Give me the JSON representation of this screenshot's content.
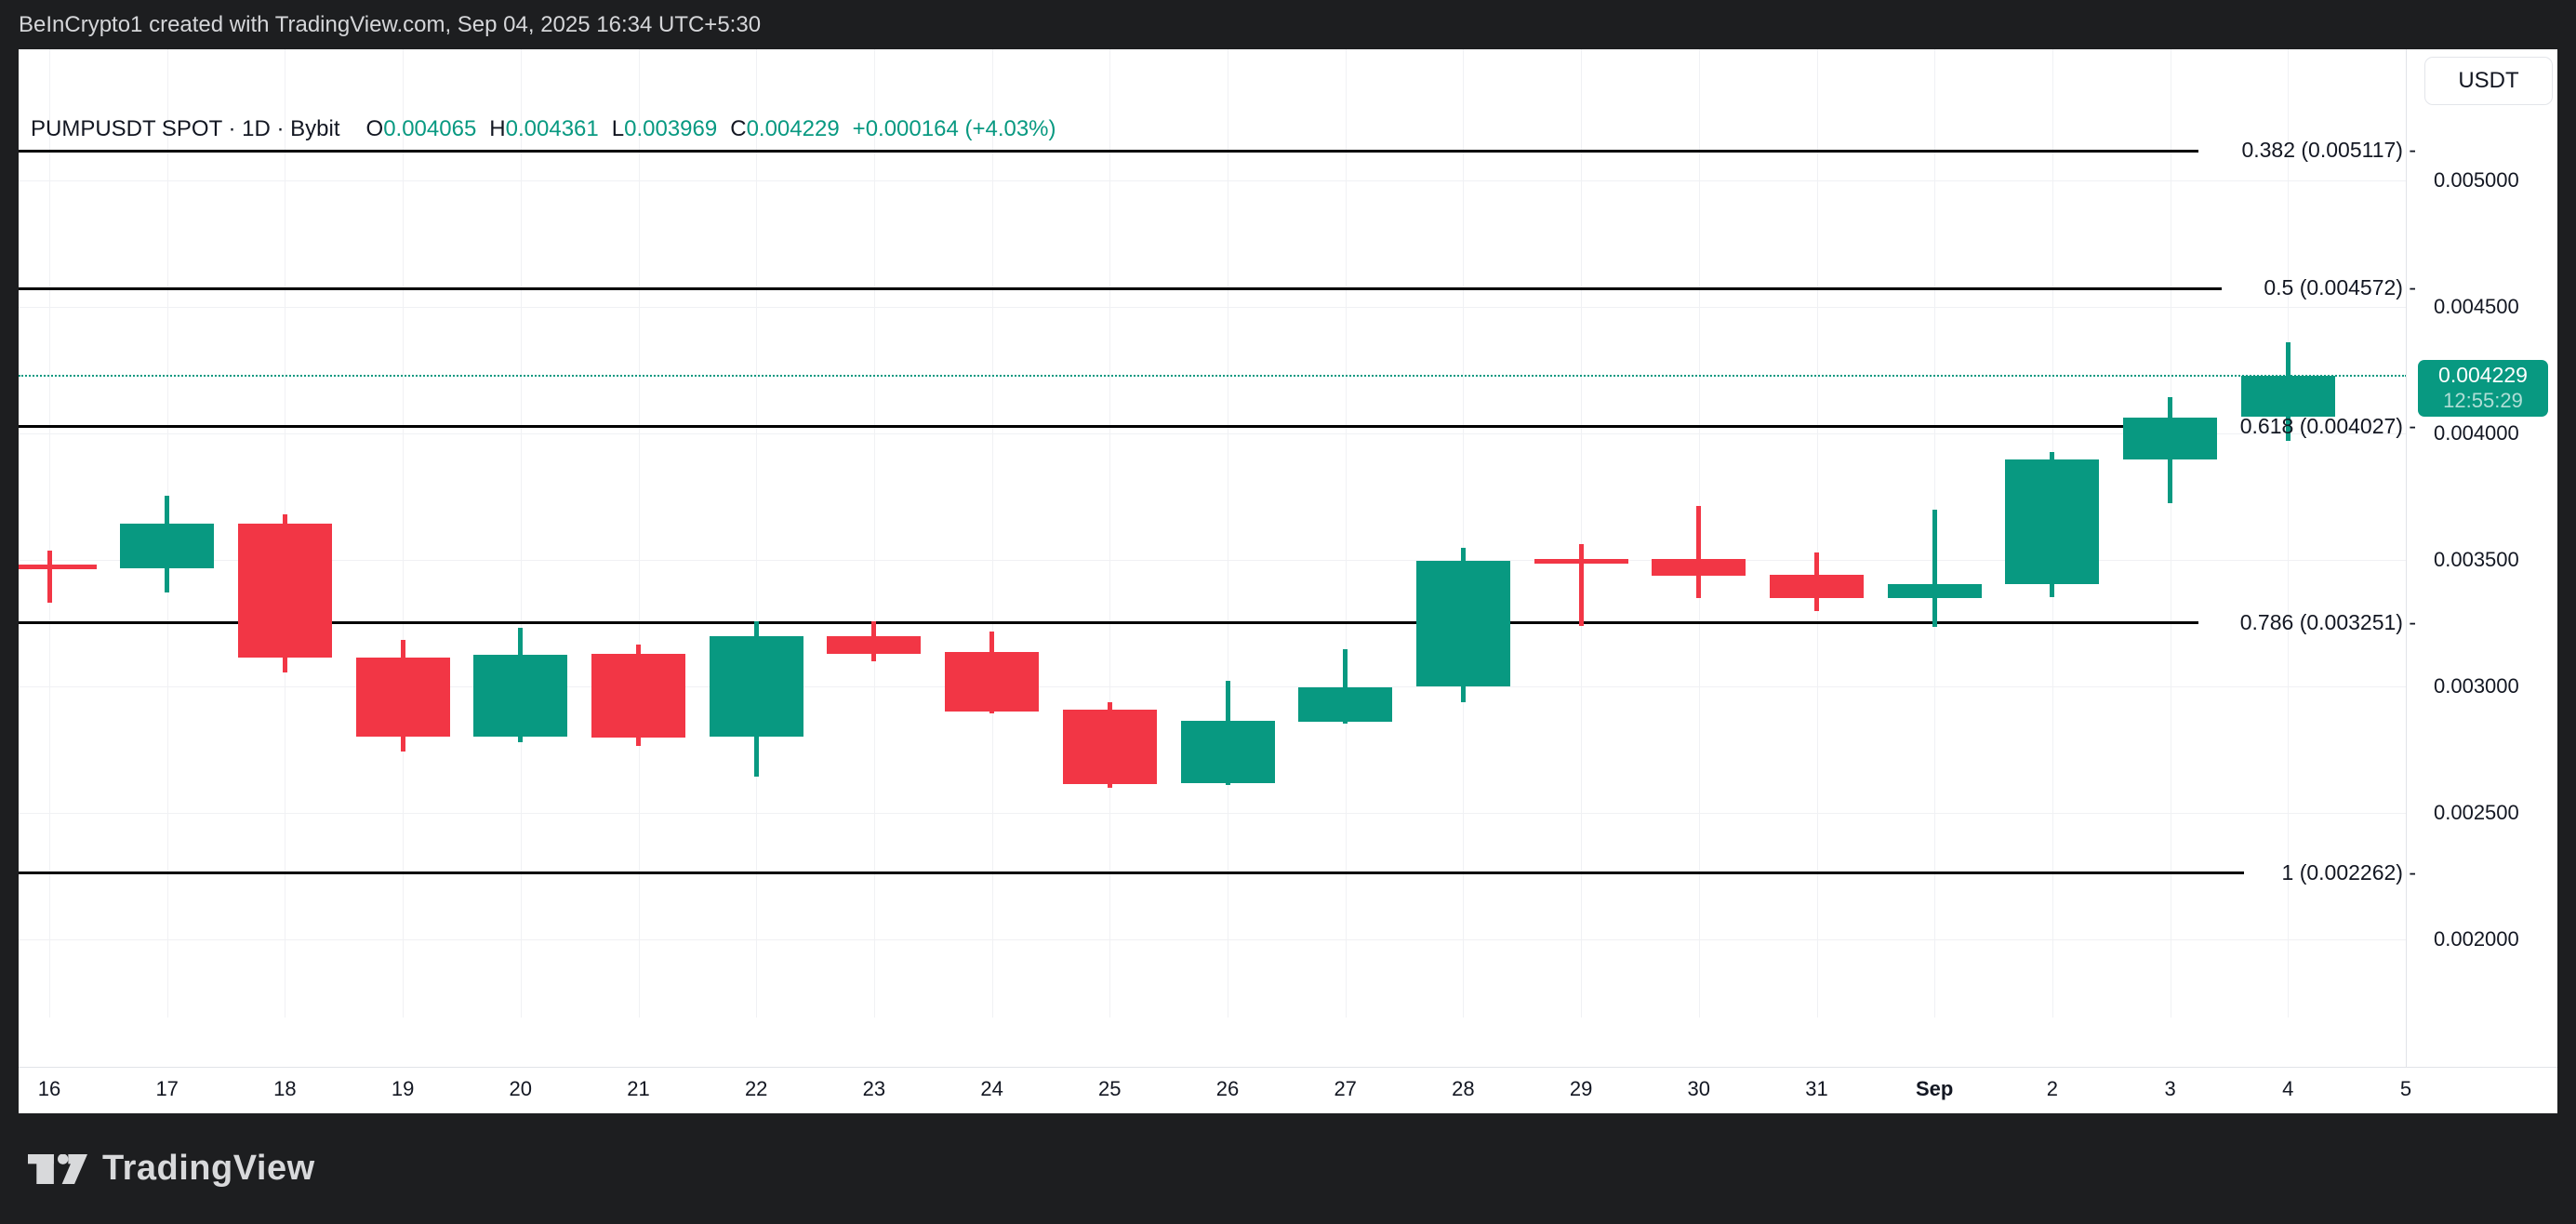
{
  "frame": {
    "header_title": "BeInCrypto1 created with TradingView.com, Sep 04, 2025 16:34 UTC+5:30",
    "footer_brand": "TradingView"
  },
  "toolbar": {
    "currency_label": "USDT"
  },
  "legend": {
    "symbol": "PUMPUSDT SPOT · 1D · Bybit",
    "ohlc": [
      {
        "label": "O",
        "value": "0.004065"
      },
      {
        "label": "H",
        "value": "0.004361"
      },
      {
        "label": "L",
        "value": "0.003969"
      },
      {
        "label": "C",
        "value": "0.004229"
      }
    ],
    "change": "+0.000164 (+4.03%)"
  },
  "colors": {
    "up": "#089981",
    "down": "#f23645",
    "fib_line": "#000000",
    "text": "#131722",
    "grid": "#f0f1f4",
    "frame_bg": "#1d1e20",
    "frame_text": "#d5d6d9",
    "badge_bg": "#089981"
  },
  "chart_data": {
    "type": "candlestick",
    "title": "PUMPUSDT SPOT · 1D · Bybit",
    "interval": "1D",
    "exchange": "Bybit",
    "grid": true,
    "y_axis": {
      "side": "right",
      "tick_labels": [
        "0.005000",
        "0.004500",
        "0.004000",
        "0.003500",
        "0.003000",
        "0.002500",
        "0.002000"
      ],
      "tick_values": [
        0.005,
        0.0045,
        0.004,
        0.0035,
        0.003,
        0.0025,
        0.002
      ],
      "visible_range": [
        0.001496,
        0.005518
      ]
    },
    "x_axis": {
      "labels": [
        "16",
        "17",
        "18",
        "19",
        "20",
        "21",
        "22",
        "23",
        "24",
        "25",
        "26",
        "27",
        "28",
        "29",
        "30",
        "31",
        "Sep",
        "2",
        "3",
        "4",
        "5"
      ],
      "bold_labels": [
        "Sep"
      ]
    },
    "last_price": {
      "value": "0.004229",
      "countdown": "12:55:29",
      "price": 0.004229
    },
    "fib_levels": [
      {
        "level": 0.382,
        "price": 0.005117,
        "label": "0.382 (0.005117) -"
      },
      {
        "level": 0.5,
        "price": 0.004572,
        "label": "0.5 (0.004572) -"
      },
      {
        "level": 0.618,
        "price": 0.004027,
        "label": "0.618 (0.004027) -"
      },
      {
        "level": 0.786,
        "price": 0.003251,
        "label": "0.786 (0.003251) -"
      },
      {
        "level": 1,
        "price": 0.002262,
        "label": "1 (0.002262) -"
      }
    ],
    "candles": [
      {
        "date": "16",
        "o": 0.00348,
        "h": 0.003537,
        "l": 0.003331,
        "c": 0.003473
      },
      {
        "date": "17",
        "o": 0.003467,
        "h": 0.003753,
        "l": 0.003371,
        "c": 0.003643
      },
      {
        "date": "18",
        "o": 0.003643,
        "h": 0.00368,
        "l": 0.003055,
        "c": 0.003114
      },
      {
        "date": "19",
        "o": 0.003114,
        "h": 0.003184,
        "l": 0.002743,
        "c": 0.002801
      },
      {
        "date": "20",
        "o": 0.002801,
        "h": 0.003232,
        "l": 0.002779,
        "c": 0.003125
      },
      {
        "date": "21",
        "o": 0.003129,
        "h": 0.003165,
        "l": 0.002765,
        "c": 0.002798
      },
      {
        "date": "22",
        "o": 0.002801,
        "h": 0.003257,
        "l": 0.002643,
        "c": 0.003199
      },
      {
        "date": "23",
        "o": 0.003199,
        "h": 0.003257,
        "l": 0.003099,
        "c": 0.003129
      },
      {
        "date": "24",
        "o": 0.003136,
        "h": 0.003217,
        "l": 0.002893,
        "c": 0.0029
      },
      {
        "date": "25",
        "o": 0.002908,
        "h": 0.002937,
        "l": 0.002599,
        "c": 0.002614
      },
      {
        "date": "26",
        "o": 0.002617,
        "h": 0.003022,
        "l": 0.00261,
        "c": 0.002864
      },
      {
        "date": "27",
        "o": 0.00286,
        "h": 0.003147,
        "l": 0.002853,
        "c": 0.002996
      },
      {
        "date": "28",
        "o": 0.003,
        "h": 0.003548,
        "l": 0.002937,
        "c": 0.003496
      },
      {
        "date": "29",
        "o": 0.003505,
        "h": 0.003562,
        "l": 0.003239,
        "c": 0.0035
      },
      {
        "date": "30",
        "o": 0.003503,
        "h": 0.003713,
        "l": 0.003349,
        "c": 0.003437
      },
      {
        "date": "31",
        "o": 0.003441,
        "h": 0.003529,
        "l": 0.003297,
        "c": 0.003349
      },
      {
        "date": "Sep",
        "o": 0.003349,
        "h": 0.003698,
        "l": 0.003235,
        "c": 0.003404
      },
      {
        "date": "2",
        "o": 0.003404,
        "h": 0.003926,
        "l": 0.003353,
        "c": 0.003897
      },
      {
        "date": "3",
        "o": 0.003897,
        "h": 0.004143,
        "l": 0.003724,
        "c": 0.004062
      },
      {
        "date": "4",
        "o": 0.004065,
        "h": 0.004361,
        "l": 0.003969,
        "c": 0.004229
      }
    ]
  }
}
